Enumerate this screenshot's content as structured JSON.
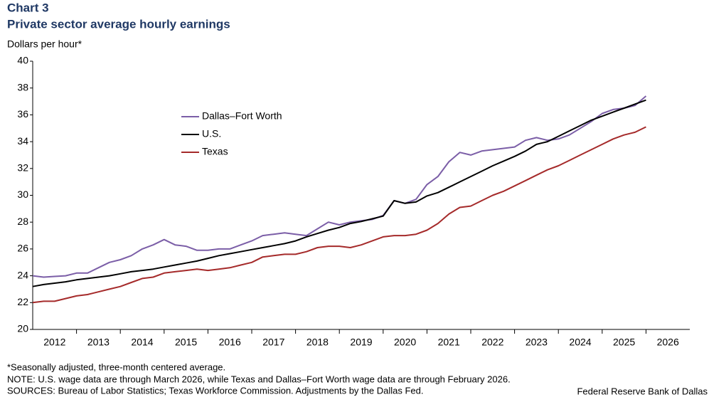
{
  "chart_data": {
    "type": "line",
    "title": "Chart 3",
    "subtitle": "Private sector average hourly earnings",
    "y_label": "Dollars per hour*",
    "x": [
      2012,
      2012.25,
      2012.5,
      2012.75,
      2013,
      2013.25,
      2013.5,
      2013.75,
      2014,
      2014.25,
      2014.5,
      2014.75,
      2015,
      2015.25,
      2015.5,
      2015.75,
      2016,
      2016.25,
      2016.5,
      2016.75,
      2017,
      2017.25,
      2017.5,
      2017.75,
      2018,
      2018.25,
      2018.5,
      2018.75,
      2019,
      2019.25,
      2019.5,
      2019.75,
      2020,
      2020.25,
      2020.5,
      2020.75,
      2021,
      2021.25,
      2021.5,
      2021.75,
      2022,
      2022.25,
      2022.5,
      2022.75,
      2023,
      2023.25,
      2023.5,
      2023.75,
      2024,
      2024.25,
      2024.5,
      2024.75,
      2025,
      2025.25,
      2025.5,
      2025.75,
      2026
    ],
    "series": [
      {
        "name": "Dallas–Fort Worth",
        "color": "#7b5ea7",
        "values": [
          24.0,
          23.9,
          23.95,
          24.0,
          24.2,
          24.2,
          24.6,
          25.0,
          25.2,
          25.5,
          26.0,
          26.3,
          26.7,
          26.3,
          26.2,
          25.9,
          25.9,
          26.0,
          26.0,
          26.3,
          26.6,
          27.0,
          27.1,
          27.2,
          27.1,
          27.0,
          27.5,
          28.0,
          27.8,
          28.0,
          28.1,
          28.2,
          28.5,
          29.6,
          29.4,
          29.7,
          30.8,
          31.4,
          32.5,
          33.2,
          33.0,
          33.3,
          33.4,
          33.5,
          33.6,
          34.1,
          34.3,
          34.1,
          34.2,
          34.5,
          35.0,
          35.5,
          36.1,
          36.4,
          36.5,
          36.7,
          37.4
        ]
      },
      {
        "name": "U.S.",
        "color": "#000000",
        "values": [
          23.2,
          23.35,
          23.45,
          23.55,
          23.7,
          23.8,
          23.9,
          24.0,
          24.15,
          24.3,
          24.4,
          24.5,
          24.65,
          24.8,
          24.95,
          25.1,
          25.3,
          25.5,
          25.65,
          25.8,
          25.95,
          26.1,
          26.25,
          26.4,
          26.6,
          26.9,
          27.15,
          27.4,
          27.6,
          27.9,
          28.05,
          28.25,
          28.45,
          29.6,
          29.4,
          29.5,
          29.95,
          30.2,
          30.6,
          31.0,
          31.4,
          31.8,
          32.2,
          32.55,
          32.9,
          33.3,
          33.8,
          34.0,
          34.4,
          34.8,
          35.2,
          35.6,
          35.9,
          36.2,
          36.5,
          36.8,
          37.1
        ]
      },
      {
        "name": "Texas",
        "color": "#a52a2a",
        "values": [
          22.0,
          22.1,
          22.1,
          22.3,
          22.5,
          22.6,
          22.8,
          23.0,
          23.2,
          23.5,
          23.8,
          23.9,
          24.2,
          24.3,
          24.4,
          24.5,
          24.4,
          24.5,
          24.6,
          24.8,
          25.0,
          25.4,
          25.5,
          25.6,
          25.6,
          25.8,
          26.1,
          26.2,
          26.2,
          26.1,
          26.3,
          26.6,
          26.9,
          27.0,
          27.0,
          27.1,
          27.4,
          27.9,
          28.6,
          29.1,
          29.2,
          29.6,
          30.0,
          30.3,
          30.7,
          31.1,
          31.5,
          31.9,
          32.2,
          32.6,
          33.0,
          33.4,
          33.8,
          34.2,
          34.5,
          34.7,
          35.1
        ]
      }
    ],
    "xlim": [
      2012,
      2027
    ],
    "xticks": [
      {
        "value": 2012.5,
        "label": "2012"
      },
      {
        "value": 2013.5,
        "label": "2013"
      },
      {
        "value": 2014.5,
        "label": "2014"
      },
      {
        "value": 2015.5,
        "label": "2015"
      },
      {
        "value": 2016.5,
        "label": "2016"
      },
      {
        "value": 2017.5,
        "label": "2017"
      },
      {
        "value": 2018.5,
        "label": "2018"
      },
      {
        "value": 2019.5,
        "label": "2019"
      },
      {
        "value": 2020.5,
        "label": "2020"
      },
      {
        "value": 2021.5,
        "label": "2021"
      },
      {
        "value": 2022.5,
        "label": "2022"
      },
      {
        "value": 2023.5,
        "label": "2023"
      },
      {
        "value": 2024.5,
        "label": "2024"
      },
      {
        "value": 2025.5,
        "label": "2025"
      },
      {
        "value": 2026.5,
        "label": "2026"
      }
    ],
    "ylim": [
      20,
      40
    ],
    "yticks": [
      20,
      22,
      24,
      26,
      28,
      30,
      32,
      34,
      36,
      38,
      40
    ],
    "grid": false,
    "notes": [
      "*Seasonally adjusted, three-month centered average.",
      "NOTE: U.S. wage data are through March 2026, while Texas and Dallas–Fort Worth wage data are through February 2026.",
      "SOURCES: Bureau of Labor Statistics; Texas Workforce Commission. Adjustments by the Dallas Fed."
    ],
    "credit": "Federal Reserve Bank of Dallas"
  }
}
